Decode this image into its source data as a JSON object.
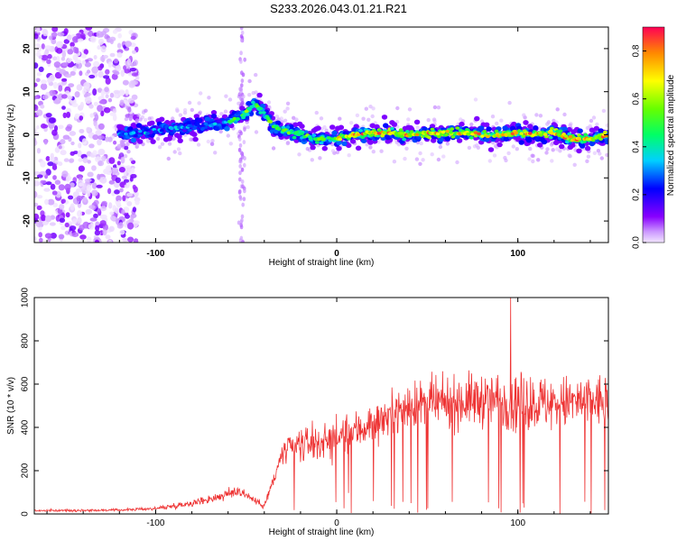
{
  "title": "S233.2026.043.01.21.R21",
  "chart_data": [
    {
      "type": "heatmap",
      "xlabel": "Height of straight line (km)",
      "ylabel": "Frequency (Hz)",
      "xlim": [
        -167,
        150
      ],
      "ylim": [
        -25,
        25
      ],
      "x_ticks": [
        -100,
        0,
        100
      ],
      "y_ticks": [
        -20,
        -10,
        0,
        10,
        20
      ],
      "colorbar": {
        "label": "Normalized spectral amplitude",
        "range": [
          0,
          0.9
        ],
        "ticks": [
          0.0,
          0.2,
          0.4,
          0.6,
          0.8
        ]
      },
      "ridge": {
        "x": [
          -120,
          -110,
          -100,
          -90,
          -80,
          -70,
          -60,
          -50,
          -45,
          -40,
          -35,
          -30,
          -20,
          -10,
          0,
          10,
          20,
          30,
          40,
          50,
          60,
          70,
          80,
          90,
          100,
          110,
          120,
          130,
          140,
          150
        ],
        "frequency": [
          0,
          0.5,
          1,
          1.5,
          2,
          2.5,
          3,
          5,
          7,
          5,
          2,
          1,
          0,
          -1,
          -1,
          0,
          0.5,
          0.5,
          0,
          0.3,
          0.5,
          0.5,
          0,
          0,
          0.5,
          0,
          0.5,
          -1,
          -1,
          0
        ],
        "peak_amplitude": 0.9
      },
      "scatter_region": {
        "x_from": -167,
        "x_to": -120,
        "frequency_range": [
          -25,
          25
        ]
      }
    },
    {
      "type": "line",
      "xlabel": "Height of straight line (km)",
      "ylabel": "SNR (10 * v/v)",
      "xlim": [
        -167,
        150
      ],
      "ylim": [
        0,
        1000
      ],
      "x_ticks": [
        -100,
        0,
        100
      ],
      "y_ticks": [
        0,
        200,
        400,
        600,
        800,
        1000
      ],
      "color": "#ee3333",
      "envelope": {
        "x": [
          -167,
          -120,
          -100,
          -80,
          -70,
          -60,
          -55,
          -50,
          -45,
          -40,
          -35,
          -30,
          -20,
          -10,
          0,
          10,
          20,
          30,
          40,
          60,
          80,
          100,
          120,
          140,
          150
        ],
        "baseline": [
          15,
          18,
          25,
          50,
          70,
          90,
          110,
          90,
          60,
          40,
          150,
          280,
          320,
          330,
          350,
          380,
          420,
          460,
          500,
          510,
          530,
          520,
          510,
          520,
          520
        ],
        "spread": [
          10,
          10,
          15,
          30,
          40,
          50,
          60,
          50,
          30,
          30,
          80,
          120,
          150,
          160,
          160,
          180,
          180,
          180,
          200,
          220,
          240,
          250,
          240,
          240,
          240
        ]
      },
      "peak": {
        "x": 96,
        "y": 1000
      }
    }
  ],
  "colors": {
    "snr_line": "#ee3333",
    "axis": "#000000"
  }
}
